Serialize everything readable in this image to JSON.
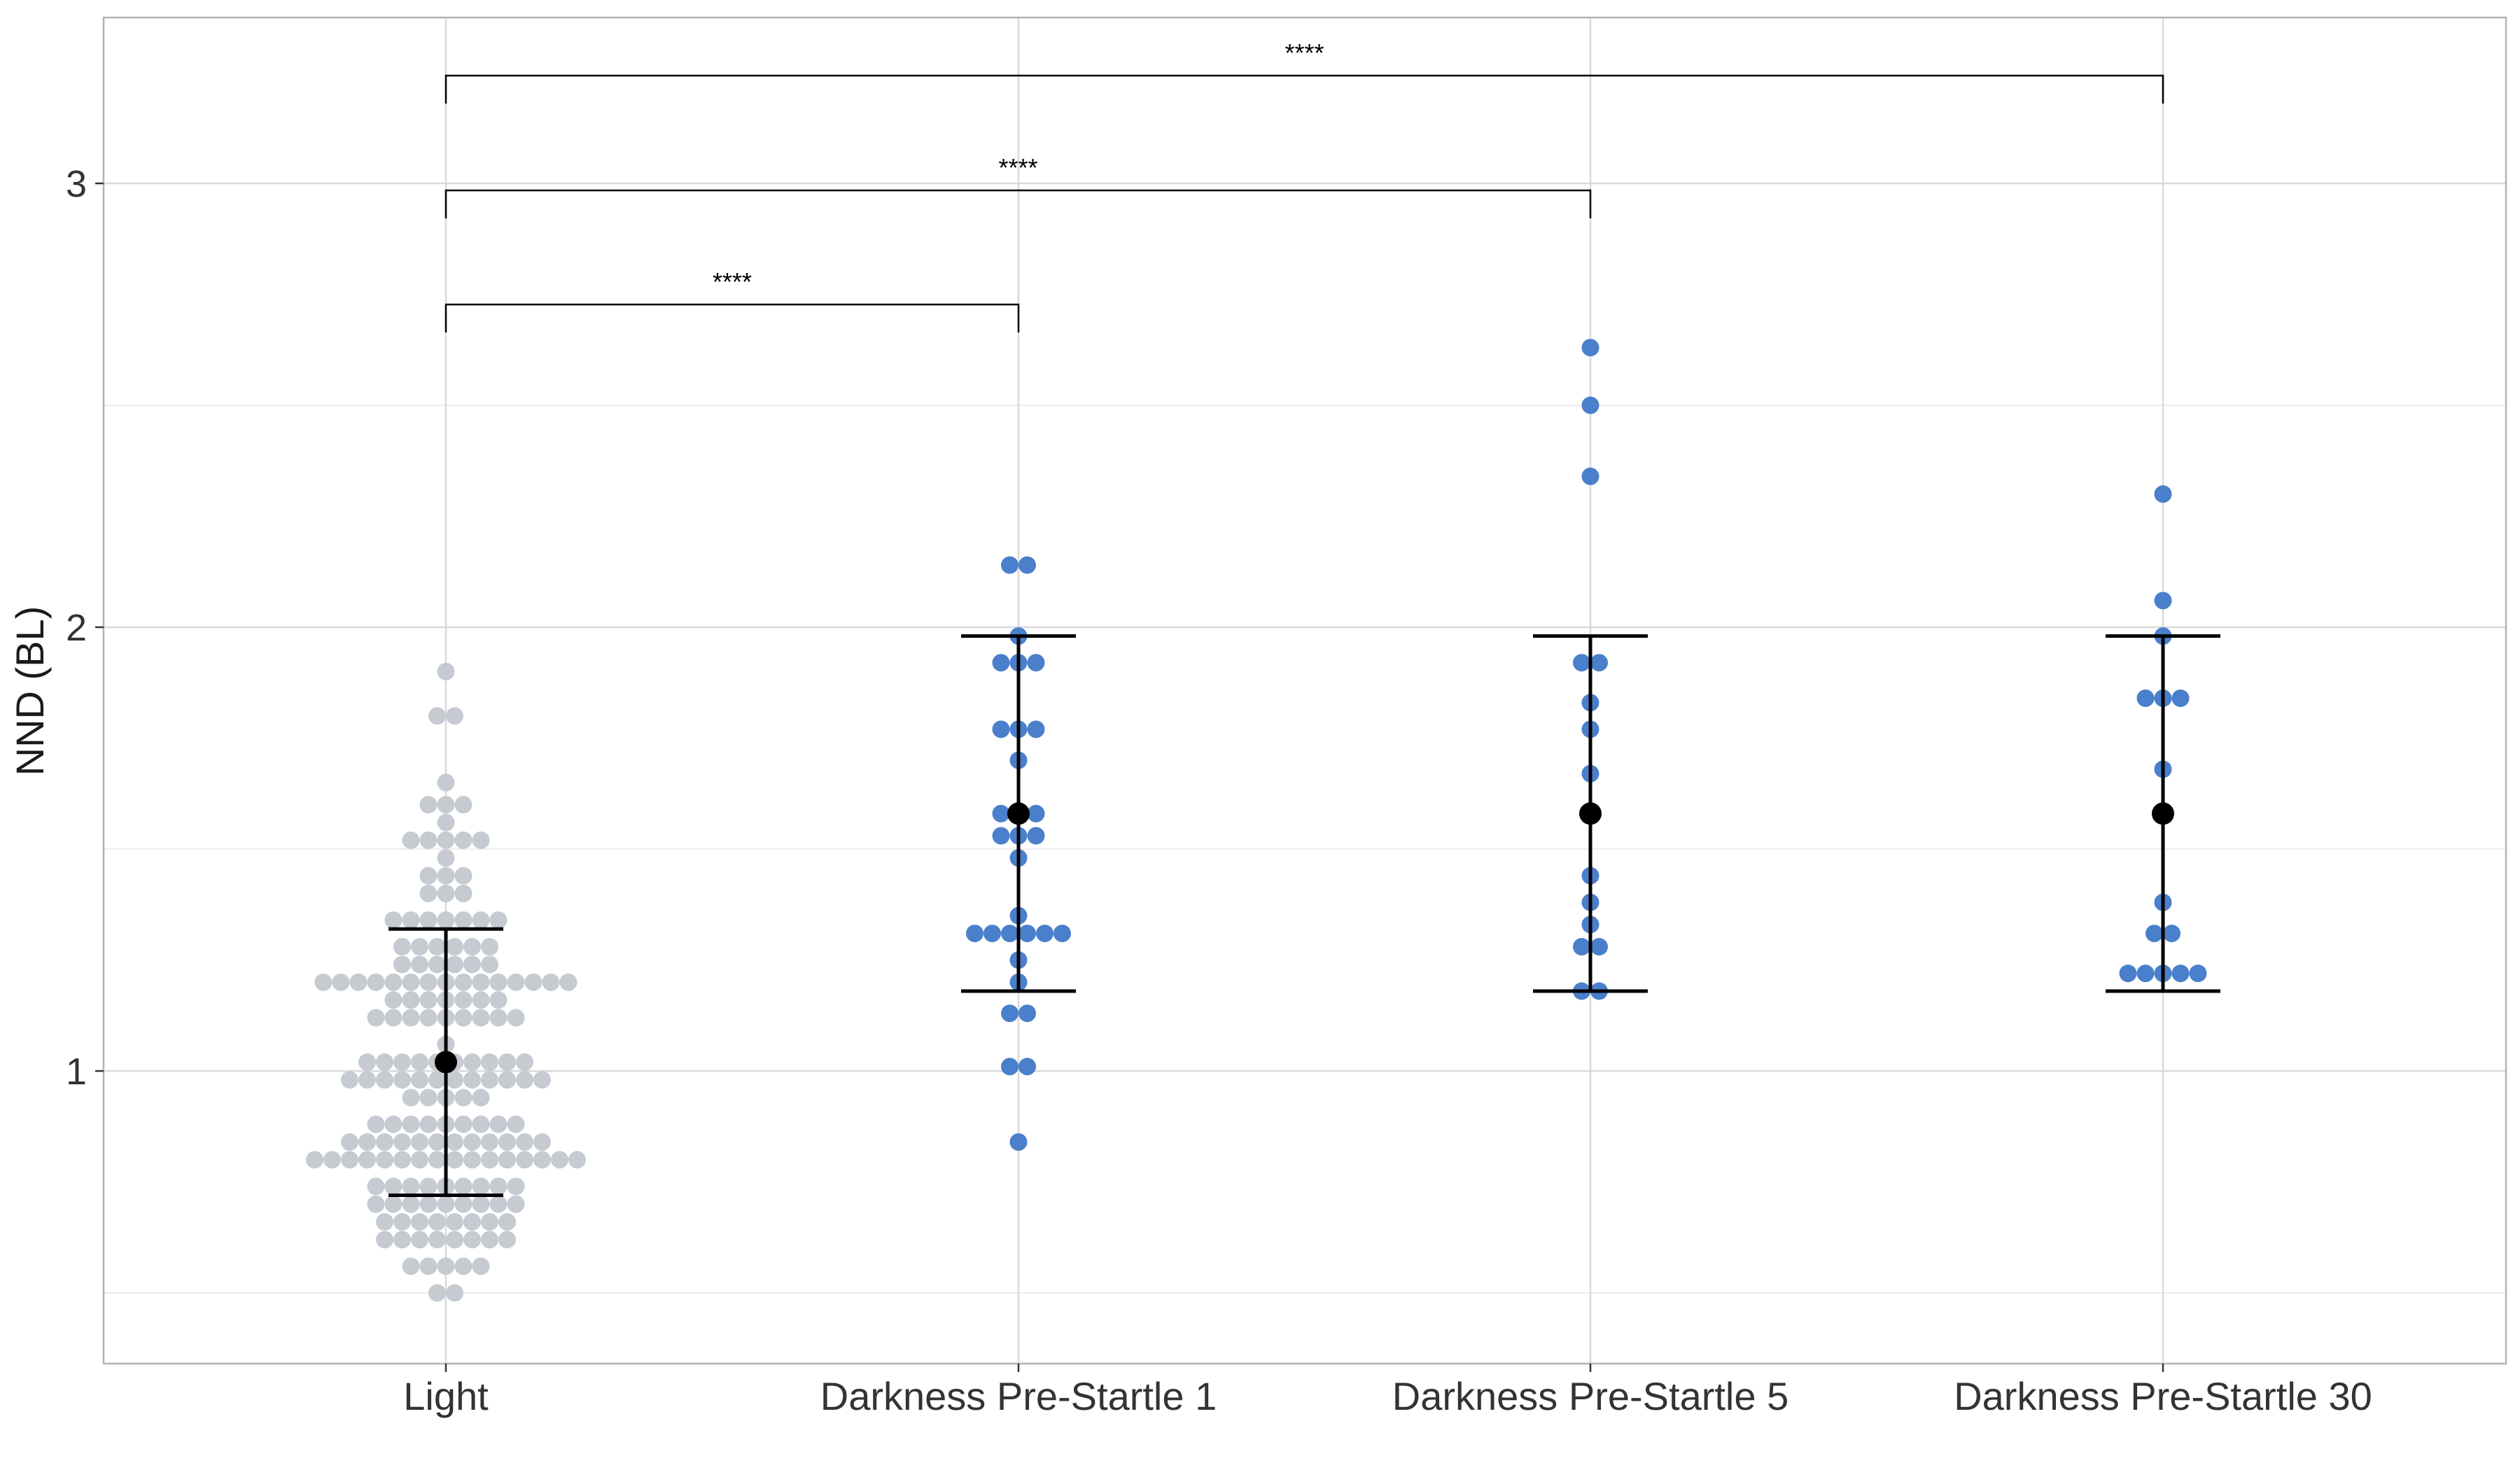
{
  "chart_data": {
    "type": "scatter",
    "subtype": "dot-plot",
    "title": "",
    "xlabel": "",
    "ylabel": "NND (BL)",
    "ylim": [
      0.35,
      3.37
    ],
    "yticks": [
      1,
      2,
      3
    ],
    "grid": true,
    "categories": [
      "Light",
      "Darkness Pre-Startle 1",
      "Darkness Pre-Startle 5",
      "Darkness Pre-Startle 30"
    ],
    "colors": {
      "Light": "#c6cad1",
      "Darkness Pre-Startle 1": "#4a7fcb",
      "Darkness Pre-Startle 5": "#4a7fcb",
      "Darkness Pre-Startle 30": "#4a7fcb",
      "summary": "#000000"
    },
    "points": [
      [
        0.5,
        0.5,
        0.56,
        0.56,
        0.56,
        0.56,
        0.56,
        0.62,
        0.62,
        0.62,
        0.62,
        0.62,
        0.62,
        0.62,
        0.62,
        0.66,
        0.66,
        0.66,
        0.66,
        0.66,
        0.66,
        0.66,
        0.66,
        0.7,
        0.7,
        0.7,
        0.7,
        0.7,
        0.7,
        0.7,
        0.7,
        0.7,
        0.74,
        0.74,
        0.74,
        0.74,
        0.74,
        0.74,
        0.74,
        0.74,
        0.74,
        0.8,
        0.8,
        0.8,
        0.8,
        0.8,
        0.8,
        0.8,
        0.8,
        0.8,
        0.8,
        0.8,
        0.8,
        0.8,
        0.8,
        0.8,
        0.8,
        0.84,
        0.84,
        0.84,
        0.84,
        0.84,
        0.84,
        0.84,
        0.84,
        0.84,
        0.84,
        0.84,
        0.84,
        0.88,
        0.88,
        0.88,
        0.88,
        0.88,
        0.88,
        0.88,
        0.88,
        0.88,
        0.94,
        0.94,
        0.94,
        0.94,
        0.94,
        0.98,
        0.98,
        0.98,
        0.98,
        0.98,
        0.98,
        0.98,
        0.98,
        0.98,
        0.98,
        0.98,
        0.98,
        1.02,
        1.02,
        1.02,
        1.02,
        1.02,
        1.02,
        1.02,
        1.02,
        1.02,
        1.02,
        1.06,
        1.12,
        1.12,
        1.12,
        1.12,
        1.12,
        1.12,
        1.12,
        1.12,
        1.12,
        1.16,
        1.16,
        1.16,
        1.16,
        1.16,
        1.16,
        1.16,
        1.2,
        1.2,
        1.2,
        1.2,
        1.2,
        1.2,
        1.2,
        1.2,
        1.2,
        1.2,
        1.2,
        1.2,
        1.2,
        1.2,
        1.2,
        1.24,
        1.24,
        1.24,
        1.24,
        1.24,
        1.24,
        1.28,
        1.28,
        1.28,
        1.28,
        1.28,
        1.28,
        1.34,
        1.34,
        1.34,
        1.34,
        1.34,
        1.34,
        1.34,
        1.4,
        1.4,
        1.4,
        1.44,
        1.44,
        1.44,
        1.48,
        1.52,
        1.52,
        1.52,
        1.52,
        1.52,
        1.56,
        1.6,
        1.6,
        1.6,
        1.65,
        1.8,
        1.8,
        1.9
      ],
      [
        0.84,
        1.01,
        1.01,
        1.13,
        1.13,
        1.2,
        1.25,
        1.31,
        1.31,
        1.31,
        1.31,
        1.31,
        1.31,
        1.35,
        1.48,
        1.53,
        1.53,
        1.53,
        1.58,
        1.58,
        1.58,
        1.7,
        1.77,
        1.77,
        1.77,
        1.92,
        1.92,
        1.92,
        1.98,
        2.14,
        2.14
      ],
      [
        1.18,
        1.18,
        1.28,
        1.28,
        1.33,
        1.38,
        1.44,
        1.67,
        1.77,
        1.83,
        1.92,
        1.92,
        2.34,
        2.5,
        2.63
      ],
      [
        1.22,
        1.22,
        1.22,
        1.22,
        1.22,
        1.31,
        1.31,
        1.38,
        1.68,
        1.84,
        1.84,
        1.84,
        1.98,
        2.06,
        2.3
      ]
    ],
    "summary": [
      {
        "mean": 1.02,
        "lower": 0.72,
        "upper": 1.32
      },
      {
        "mean": 1.58,
        "lower": 1.18,
        "upper": 1.98
      },
      {
        "mean": 1.58,
        "lower": 1.18,
        "upper": 1.98
      },
      {
        "mean": 1.58,
        "lower": 1.18,
        "upper": 1.98
      }
    ],
    "significance": [
      {
        "from": "Light",
        "to": "Darkness Pre-Startle 1",
        "label": "****"
      },
      {
        "from": "Light",
        "to": "Darkness Pre-Startle 5",
        "label": "****"
      },
      {
        "from": "Light",
        "to": "Darkness Pre-Startle 30",
        "label": "****"
      }
    ]
  }
}
